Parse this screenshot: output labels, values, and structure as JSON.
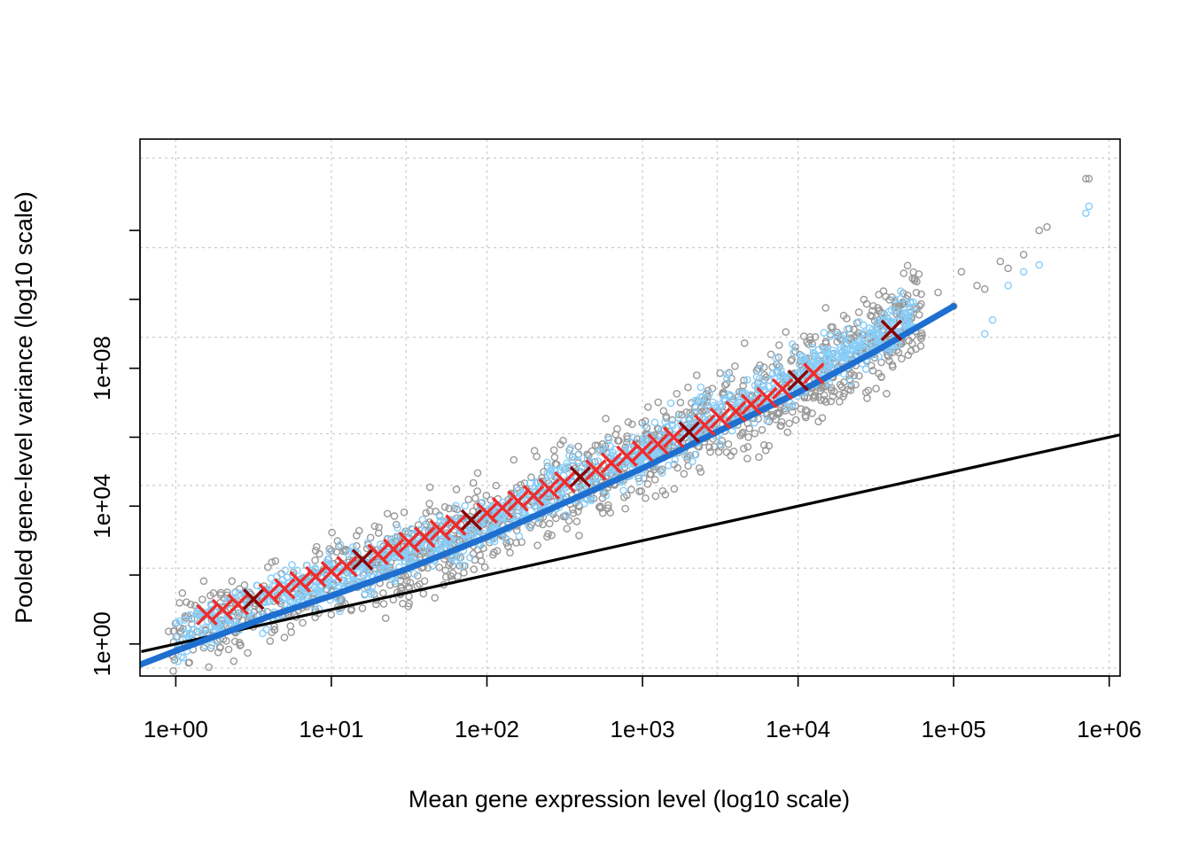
{
  "chart_data": {
    "type": "scatter",
    "title": "",
    "xlabel": "Mean gene expression level (log10 scale)",
    "ylabel": "Pooled gene-level variance (log10 scale)",
    "x_scale": "log10",
    "y_scale": "log10",
    "xlim_log10": [
      -0.23,
      6.07
    ],
    "ylim_log10": [
      -0.93,
      14.65
    ],
    "grid": true,
    "x_ticks": [
      {
        "value": 1,
        "label": "1e+00"
      },
      {
        "value": 10,
        "label": "1e+01"
      },
      {
        "value": 100,
        "label": "1e+02"
      },
      {
        "value": 1000,
        "label": "1e+03"
      },
      {
        "value": 10000,
        "label": "1e+04"
      },
      {
        "value": 100000,
        "label": "1e+05"
      },
      {
        "value": 1000000,
        "label": "1e+06"
      }
    ],
    "y_ticks": [
      {
        "value_log10": 0,
        "label": "1e+00"
      },
      {
        "value_log10": 2,
        "label": ""
      },
      {
        "value_log10": 4,
        "label": "1e+04"
      },
      {
        "value_log10": 6,
        "label": ""
      },
      {
        "value_log10": 8,
        "label": "1e+08"
      },
      {
        "value_log10": 10,
        "label": ""
      },
      {
        "value_log10": 12,
        "label": ""
      }
    ],
    "x_grid_log10": [
      0,
      1,
      2,
      3,
      4,
      5,
      6,
      1.48,
      3.48
    ],
    "y_grid_log10": [
      -0.7,
      2.2,
      6.1,
      8.9,
      11.5,
      14.1,
      4.6
    ],
    "colors": {
      "all_genes": "#999999",
      "selected_genes": "#87cefa",
      "fitted_trend": "#1e6fd0",
      "poisson_line": "#000000",
      "binned_x": "#ee2c2c",
      "binned_x_dark": "#8b0000"
    },
    "series": [
      {
        "role": "poisson_reference",
        "marker": "line",
        "color": "#000000",
        "relation": "variance = mean",
        "x_range": [
          0.6,
          1300000
        ]
      },
      {
        "role": "fitted_trend",
        "marker": "line",
        "color": "#1e6fd0",
        "x_log10": [
          -0.23,
          0,
          0.3,
          0.6,
          1.0,
          1.5,
          2.0,
          2.5,
          3.0,
          3.5,
          4.0,
          4.5,
          5.0
        ],
        "y_log10": [
          -0.6,
          -0.2,
          0.3,
          0.8,
          1.4,
          2.2,
          3.1,
          4.1,
          5.1,
          6.2,
          7.3,
          8.5,
          9.8
        ]
      },
      {
        "role": "binned_means",
        "marker": "x",
        "color": "#ee2c2c",
        "x_log10": [
          0.2,
          0.3,
          0.4,
          0.5,
          0.6,
          0.7,
          0.8,
          0.9,
          1.0,
          1.1,
          1.2,
          1.3,
          1.4,
          1.5,
          1.6,
          1.7,
          1.8,
          1.9,
          2.0,
          2.1,
          2.2,
          2.3,
          2.4,
          2.5,
          2.6,
          2.7,
          2.8,
          2.9,
          3.0,
          3.1,
          3.2,
          3.3,
          3.4,
          3.5,
          3.6,
          3.7,
          3.8,
          3.9,
          4.0,
          4.1,
          4.6
        ],
        "y_log10": [
          0.85,
          1.0,
          1.15,
          1.3,
          1.45,
          1.6,
          1.8,
          1.95,
          2.1,
          2.25,
          2.45,
          2.6,
          2.75,
          2.95,
          3.1,
          3.3,
          3.45,
          3.6,
          3.8,
          3.95,
          4.15,
          4.3,
          4.5,
          4.7,
          4.85,
          5.05,
          5.25,
          5.45,
          5.6,
          5.8,
          6.0,
          6.15,
          6.35,
          6.55,
          6.75,
          6.95,
          7.15,
          7.4,
          7.65,
          7.85,
          9.1
        ]
      }
    ]
  }
}
